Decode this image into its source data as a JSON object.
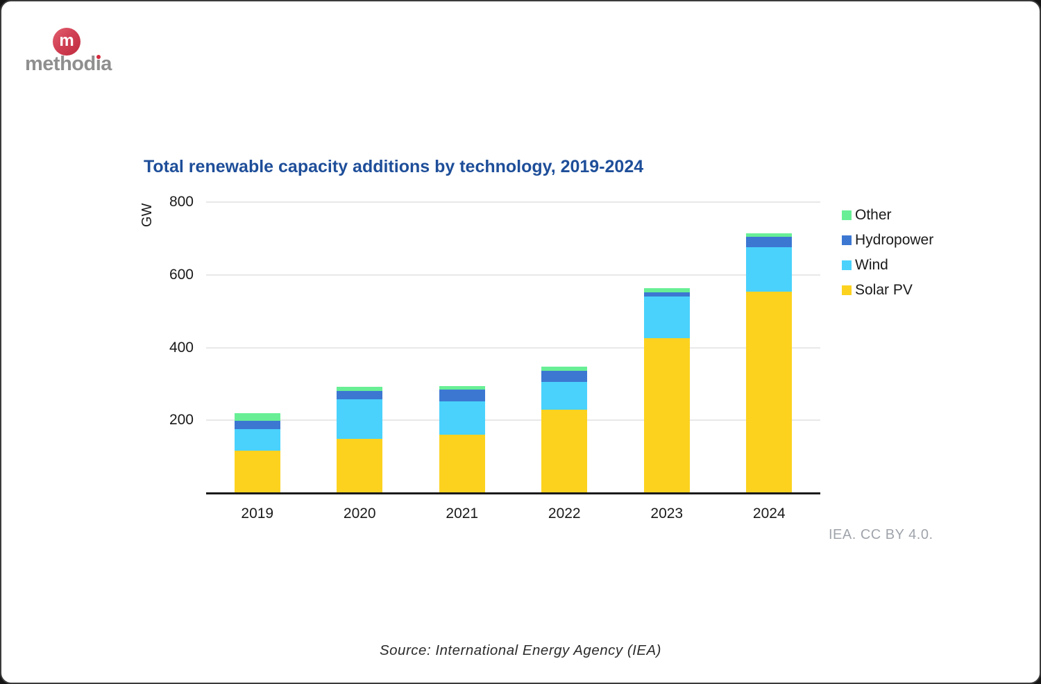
{
  "logo": {
    "monogram": "m",
    "word_start": "method",
    "dotless_i": "ı",
    "word_end": "a"
  },
  "chart": {
    "title": "Total renewable capacity additions by technology, 2019-2024",
    "attribution": "IEA. CC BY 4.0."
  },
  "footer": {
    "source_text": "Source: International Energy Agency (IEA)"
  },
  "chart_data": {
    "type": "bar",
    "stacked": true,
    "title": "Total renewable capacity additions by technology, 2019-2024",
    "xlabel": "",
    "ylabel": "GW",
    "ylim": [
      0,
      800
    ],
    "yticks": [
      200,
      400,
      600,
      800
    ],
    "grid": true,
    "legend_position": "right",
    "categories": [
      "2019",
      "2020",
      "2021",
      "2022",
      "2023",
      "2024"
    ],
    "series": [
      {
        "name": "Solar PV",
        "color": "#fcd21f",
        "values": [
          117,
          149,
          160,
          230,
          426,
          553
        ]
      },
      {
        "name": "Wind",
        "color": "#4ad2fc",
        "values": [
          58,
          108,
          92,
          76,
          115,
          122
        ]
      },
      {
        "name": "Hydropower",
        "color": "#3c78d2",
        "values": [
          23,
          23,
          33,
          31,
          11,
          29
        ]
      },
      {
        "name": "Other",
        "color": "#68ef96",
        "values": [
          21,
          12,
          10,
          10,
          11,
          10
        ]
      }
    ],
    "totals": [
      219,
      292,
      295,
      347,
      563,
      714
    ]
  }
}
